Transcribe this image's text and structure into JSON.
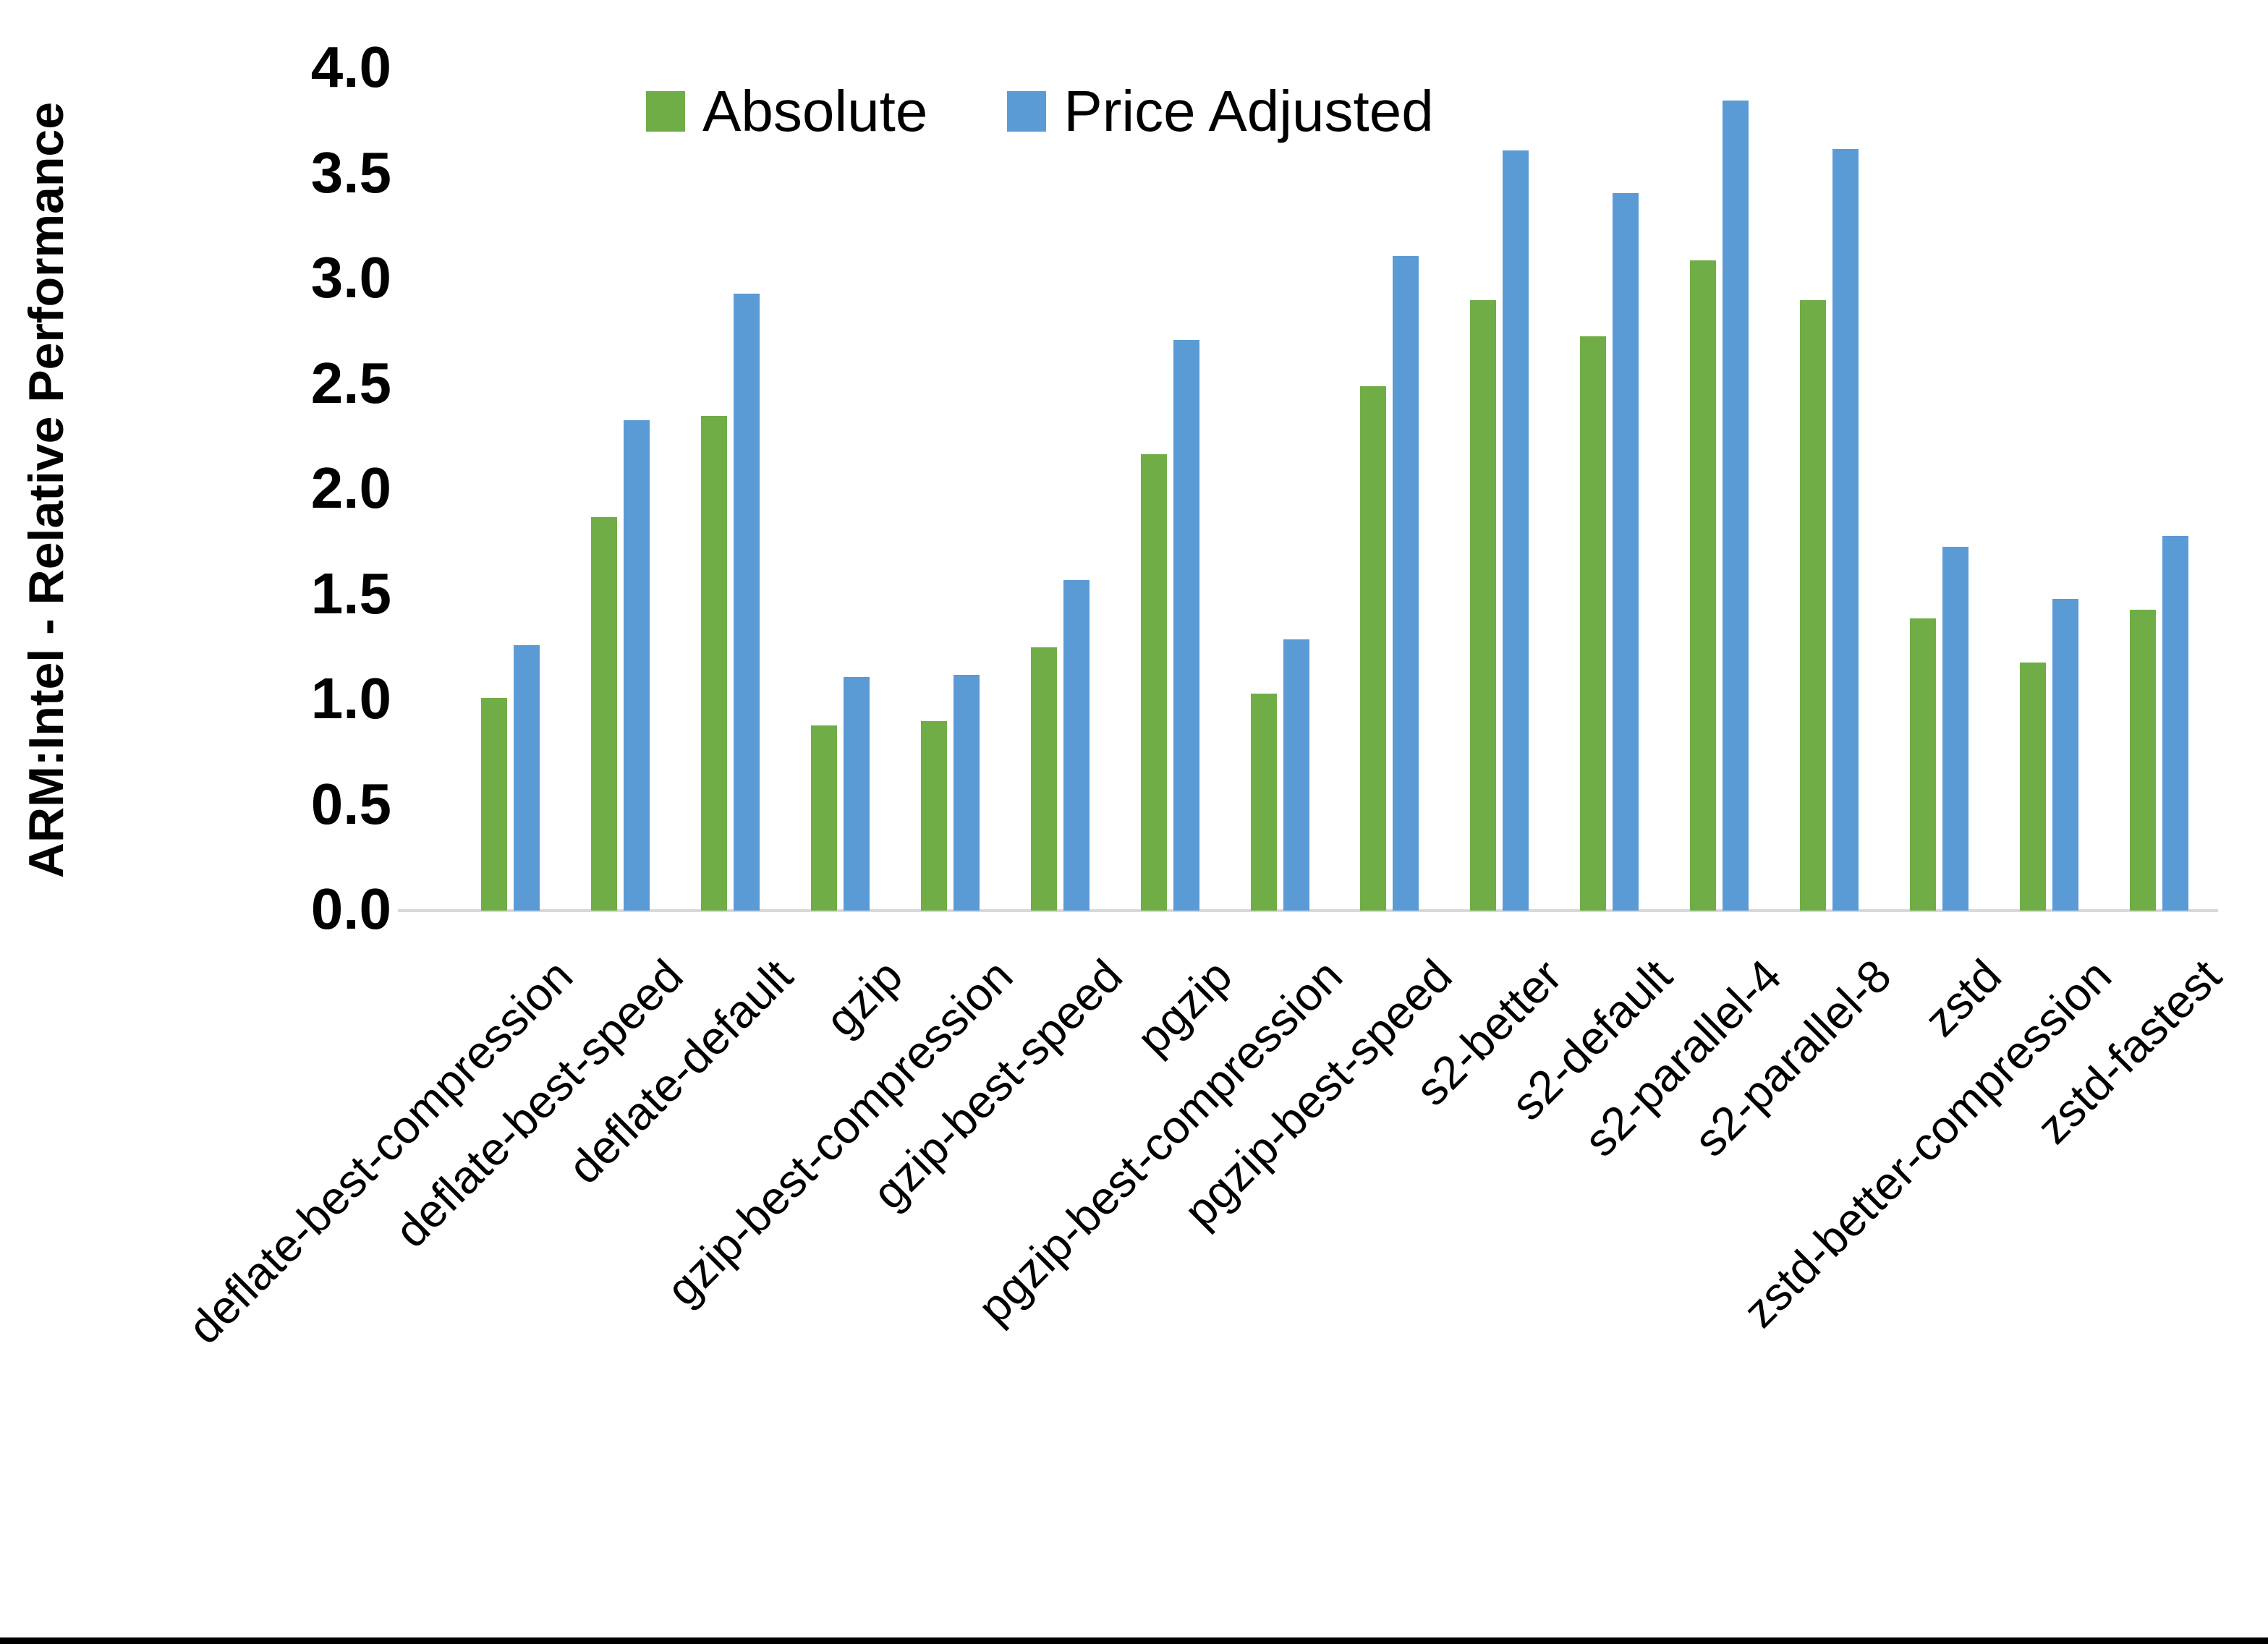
{
  "chart_data": {
    "type": "bar",
    "title": "",
    "xlabel": "",
    "ylabel": "ARM:Intel - Relative Performance",
    "ylim": [
      0.0,
      4.0
    ],
    "ytick_step": 0.5,
    "ytick_labels": [
      "0.0",
      "0.5",
      "1.0",
      "1.5",
      "2.0",
      "2.5",
      "3.0",
      "3.5",
      "4.0"
    ],
    "grid": false,
    "legend_position": "top-center",
    "categories": [
      "deflate-best-compression",
      "deflate-best-speed",
      "deflate-default",
      "gzip",
      "gzip-best-compression",
      "gzip-best-speed",
      "pgzip",
      "pgzip-best-compression",
      "pgzip-best-speed",
      "s2-better",
      "s2-default",
      "s2-parallel-4",
      "s2-parallel-8",
      "zstd",
      "zstd-better-compression",
      "zstd-fastest"
    ],
    "series": [
      {
        "name": "Absolute",
        "color": "#70AD47",
        "values": [
          1.01,
          1.87,
          2.35,
          0.88,
          0.9,
          1.25,
          2.17,
          1.03,
          2.49,
          2.9,
          2.73,
          3.09,
          2.9,
          1.39,
          1.18,
          1.43
        ]
      },
      {
        "name": "Price Adjusted",
        "color": "#5B9BD5",
        "values": [
          1.26,
          2.33,
          2.93,
          1.11,
          1.12,
          1.57,
          2.71,
          1.29,
          3.11,
          3.61,
          3.41,
          3.85,
          3.62,
          1.73,
          1.48,
          1.78
        ]
      }
    ]
  },
  "colors": {
    "background": "#FFFFFF",
    "axis_line": "#D9D9D9",
    "text": "#000000",
    "bottom_border": "#000000"
  }
}
